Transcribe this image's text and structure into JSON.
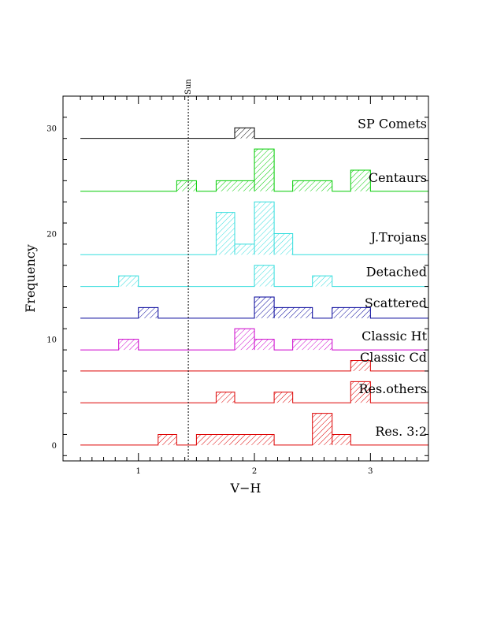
{
  "chart_data": {
    "type": "histogram",
    "xlabel": "V−H",
    "ylabel": "Frequency",
    "xlim": [
      0.35,
      3.5
    ],
    "ylim": [
      -1.5,
      33
    ],
    "bin_width": 0.1667,
    "x_ticks": [
      1,
      2,
      3
    ],
    "y_ticks": [
      0,
      10,
      20,
      30
    ],
    "reference_line": {
      "label": "Sun",
      "x": 1.43,
      "style": "dotted"
    },
    "series": [
      {
        "name": "SP Comets",
        "color": "#000000",
        "baseline": 29,
        "x_start": 0.5,
        "bars": [
          {
            "x0": 1.83,
            "x1": 2.0,
            "count": 1
          }
        ]
      },
      {
        "name": "Centaurs",
        "color": "#00cc00",
        "baseline": 24,
        "x_start": 0.5,
        "bars": [
          {
            "x0": 1.33,
            "x1": 1.5,
            "count": 1
          },
          {
            "x0": 1.67,
            "x1": 2.0,
            "count": 1
          },
          {
            "x0": 2.0,
            "x1": 2.17,
            "count": 4
          },
          {
            "x0": 2.33,
            "x1": 2.67,
            "count": 1
          },
          {
            "x0": 2.83,
            "x1": 3.0,
            "count": 2
          }
        ]
      },
      {
        "name": "J.Trojans",
        "color": "#33dddd",
        "baseline": 18,
        "x_start": 0.5,
        "bars": [
          {
            "x0": 1.67,
            "x1": 1.83,
            "count": 4
          },
          {
            "x0": 1.83,
            "x1": 2.0,
            "count": 1
          },
          {
            "x0": 2.0,
            "x1": 2.17,
            "count": 5
          },
          {
            "x0": 2.17,
            "x1": 2.33,
            "count": 2
          }
        ]
      },
      {
        "name": "Detached",
        "color": "#33dddd",
        "baseline": 15,
        "x_start": 0.5,
        "bars": [
          {
            "x0": 0.83,
            "x1": 1.0,
            "count": 1
          },
          {
            "x0": 2.0,
            "x1": 2.17,
            "count": 2
          },
          {
            "x0": 2.5,
            "x1": 2.67,
            "count": 1
          }
        ]
      },
      {
        "name": "Scattered",
        "color": "#000099",
        "baseline": 12,
        "x_start": 0.5,
        "bars": [
          {
            "x0": 1.0,
            "x1": 1.17,
            "count": 1
          },
          {
            "x0": 2.0,
            "x1": 2.17,
            "count": 2
          },
          {
            "x0": 2.17,
            "x1": 2.5,
            "count": 1
          },
          {
            "x0": 2.67,
            "x1": 3.0,
            "count": 1
          }
        ]
      },
      {
        "name": "Classic Ht",
        "color": "#cc00cc",
        "baseline": 9,
        "x_start": 0.5,
        "bars": [
          {
            "x0": 0.83,
            "x1": 1.0,
            "count": 1
          },
          {
            "x0": 1.83,
            "x1": 2.0,
            "count": 2
          },
          {
            "x0": 2.0,
            "x1": 2.17,
            "count": 1
          },
          {
            "x0": 2.33,
            "x1": 2.67,
            "count": 1
          }
        ]
      },
      {
        "name": "Classic Cd",
        "color": "#dd0000",
        "baseline": 7,
        "x_start": 0.5,
        "bars": [
          {
            "x0": 2.83,
            "x1": 3.0,
            "count": 1
          }
        ]
      },
      {
        "name": "Res.others",
        "color": "#dd0000",
        "baseline": 4,
        "x_start": 0.5,
        "bars": [
          {
            "x0": 1.67,
            "x1": 1.83,
            "count": 1
          },
          {
            "x0": 2.17,
            "x1": 2.33,
            "count": 1
          },
          {
            "x0": 2.83,
            "x1": 3.0,
            "count": 2
          }
        ]
      },
      {
        "name": "Res. 3:2",
        "color": "#dd0000",
        "baseline": 0,
        "x_start": 0.5,
        "bars": [
          {
            "x0": 1.17,
            "x1": 1.33,
            "count": 1
          },
          {
            "x0": 1.5,
            "x1": 2.17,
            "count": 1
          },
          {
            "x0": 2.5,
            "x1": 2.67,
            "count": 3
          },
          {
            "x0": 2.67,
            "x1": 2.83,
            "count": 1
          }
        ]
      }
    ]
  }
}
